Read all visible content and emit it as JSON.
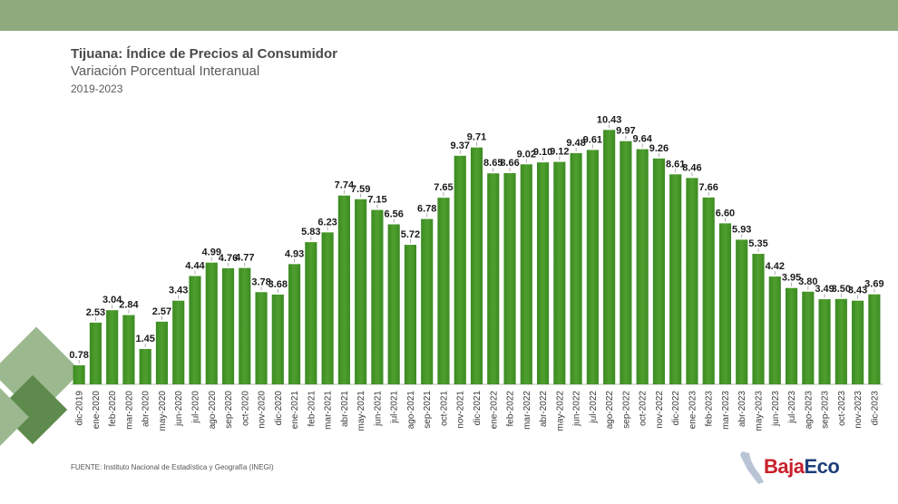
{
  "header": {
    "title": "Tijuana: Índice de Precios al Consumidor",
    "subtitle": "Variación Porcentual Interanual",
    "period": "2019-2023"
  },
  "footer": {
    "source": "FUENTE: Instituto Nacional de Estadística y Geografía (INEGI)"
  },
  "logo": {
    "part1": "Baja",
    "part2": "Eco"
  },
  "colors": {
    "band": "#8eab7e",
    "bar": "#4e9f2e",
    "bar_dark": "#3c8a22",
    "deco_light": "#9bb88f",
    "deco_dark": "#5f8a4e",
    "logo_red": "#c8202a",
    "logo_blue": "#1d3f7a"
  },
  "chart_data": {
    "type": "bar",
    "title": "Tijuana: Índice de Precios al Consumidor",
    "subtitle": "Variación Porcentual Interanual",
    "categories": [
      "dic-2019",
      "ene-2020",
      "feb-2020",
      "mar-2020",
      "abr-2020",
      "may-2020",
      "jun-2020",
      "jul-2020",
      "ago-2020",
      "sep-2020",
      "oct-2020",
      "nov-2020",
      "dic-2020",
      "ene-2021",
      "feb-2021",
      "mar-2021",
      "abr-2021",
      "may-2021",
      "jun-2021",
      "jul-2021",
      "ago-2021",
      "sep-2021",
      "oct-2021",
      "nov-2021",
      "dic-2021",
      "ene-2022",
      "feb-2022",
      "mar-2022",
      "abr-2022",
      "may-2022",
      "jun-2022",
      "jul-2022",
      "ago-2022",
      "sep-2022",
      "oct-2022",
      "nov-2022",
      "dic-2022",
      "ene-2023",
      "feb-2023",
      "mar-2023",
      "abr-2023",
      "may-2023",
      "jun-2023",
      "jul-2023",
      "ago-2023",
      "sep-2023",
      "oct-2023",
      "nov-2023",
      "dic-2023"
    ],
    "values": [
      0.78,
      2.53,
      3.04,
      2.84,
      1.45,
      2.57,
      3.43,
      4.44,
      4.99,
      4.76,
      4.77,
      3.78,
      3.68,
      4.93,
      5.83,
      6.23,
      7.74,
      7.59,
      7.15,
      6.56,
      5.72,
      6.78,
      7.65,
      9.37,
      9.71,
      8.65,
      8.66,
      9.02,
      9.1,
      9.12,
      9.48,
      9.61,
      10.43,
      9.97,
      9.64,
      9.26,
      8.61,
      8.46,
      7.66,
      6.6,
      5.93,
      5.35,
      4.42,
      3.95,
      3.8,
      3.49,
      3.5,
      3.43,
      3.69
    ],
    "labels": [
      "0.78",
      "2.53",
      "3.04",
      "2.84",
      "1.45",
      "2.57",
      "3.43",
      "4.44",
      "4.99",
      "4.76",
      "4.77",
      "3.78",
      "3.68",
      "4.93",
      "5.83",
      "6.23",
      "7.74",
      "7.59",
      "7.15",
      "6.56",
      "5.72",
      "6.78",
      "7.65",
      "9.37",
      "9.71",
      "8.65",
      "8.66",
      "9.02",
      "9.10",
      "9.12",
      "9.48",
      "9.61",
      "10.43",
      "9.97",
      "9.64",
      "9.26",
      "8.61",
      "8.46",
      "7.66",
      "6.60",
      "5.93",
      "5.35",
      "4.42",
      "3.95",
      "3.80",
      "3.49",
      "3.50",
      "3.43",
      "3.69"
    ],
    "xlabel": "",
    "ylabel": "",
    "ylim": [
      0,
      11
    ],
    "grid": false,
    "legend": "none"
  }
}
